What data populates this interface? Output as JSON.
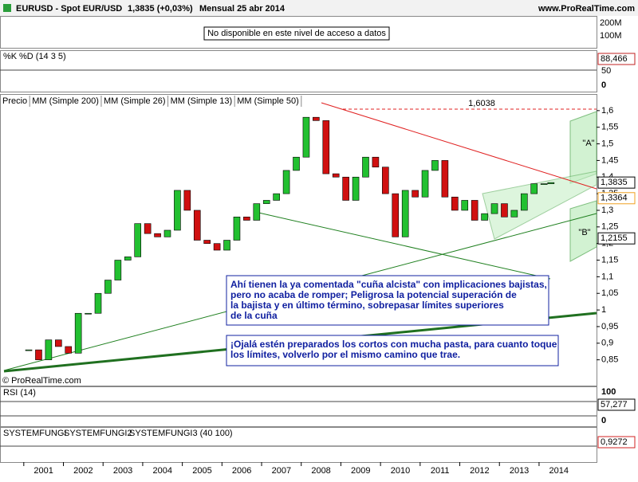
{
  "header": {
    "symbol": "EURUSD - Spot EUR/USD",
    "quote": "1,3835 (+0,03%)",
    "period": "Mensual  25 abr 2014",
    "site": "www.ProRealTime.com"
  },
  "volume_panel": {
    "message": "No disponible en este nivel de acceso a datos",
    "ticks": [
      "200M",
      "100M"
    ]
  },
  "stoch_panel": {
    "legend": [
      "%K",
      "%D (14 3 5)"
    ],
    "last": "88,466",
    "ticks": [
      "50",
      "0"
    ]
  },
  "rsi_panel": {
    "legend": "RSI (14)",
    "last": "57,277",
    "ticks": [
      "100",
      "0"
    ]
  },
  "fungi_panel": {
    "legend": [
      "SYSTEMFUNGI",
      "SYSTEMFUNGI2",
      "SYSTEMFUNGI3 (40 100)"
    ],
    "colors": [
      "#000000",
      "#d02020",
      "#2030b0"
    ],
    "last": "0,9272"
  },
  "chart_data": {
    "type": "candlestick",
    "legend": [
      {
        "name": "Precio",
        "color": "#000000"
      },
      {
        "name": "MM (Simple 200)",
        "color": "#000000"
      },
      {
        "name": "MM (Simple 26)",
        "color": "#c02020"
      },
      {
        "name": "MM (Simple 13)",
        "color": "#207040"
      },
      {
        "name": "MM (Simple 50)",
        "color": "#f0a020"
      }
    ],
    "up_color": "#22c030",
    "down_color": "#d01010",
    "x": [
      2001.125,
      2001.375,
      2001.625,
      2001.875,
      2002.125,
      2002.375,
      2002.625,
      2002.875,
      2003.125,
      2003.375,
      2003.625,
      2003.875,
      2004.125,
      2004.375,
      2004.625,
      2004.875,
      2005.125,
      2005.375,
      2005.625,
      2005.875,
      2006.125,
      2006.375,
      2006.625,
      2006.875,
      2007.125,
      2007.375,
      2007.625,
      2007.875,
      2008.125,
      2008.375,
      2008.625,
      2008.875,
      2009.125,
      2009.375,
      2009.625,
      2009.875,
      2010.125,
      2010.375,
      2010.625,
      2010.875,
      2011.125,
      2011.375,
      2011.625,
      2011.875,
      2012.125,
      2012.375,
      2012.625,
      2012.875,
      2013.125,
      2013.375,
      2013.625,
      2013.875,
      2014.125,
      2014.3
    ],
    "close": [
      0.88,
      0.85,
      0.91,
      0.89,
      0.87,
      0.99,
      0.99,
      1.05,
      1.09,
      1.15,
      1.16,
      1.26,
      1.23,
      1.22,
      1.24,
      1.36,
      1.3,
      1.21,
      1.2,
      1.18,
      1.21,
      1.28,
      1.27,
      1.32,
      1.33,
      1.35,
      1.42,
      1.46,
      1.58,
      1.57,
      1.41,
      1.4,
      1.33,
      1.4,
      1.46,
      1.43,
      1.35,
      1.22,
      1.36,
      1.34,
      1.42,
      1.45,
      1.34,
      1.3,
      1.33,
      1.27,
      1.29,
      1.32,
      1.28,
      1.3,
      1.35,
      1.38,
      1.38,
      1.3835
    ],
    "xlim": [
      2000.4,
      2015.45
    ],
    "xticks": [
      2001,
      2002,
      2003,
      2004,
      2005,
      2006,
      2007,
      2008,
      2009,
      2010,
      2011,
      2012,
      2013,
      2014
    ],
    "ylim": [
      0.77,
      1.65
    ],
    "yticks": [
      {
        "value": 0.85,
        "label": "0,85"
      },
      {
        "value": 0.9,
        "label": "0,9"
      },
      {
        "value": 0.95,
        "label": "0,95"
      },
      1,
      {
        "value": 1.05,
        "label": "1,05"
      },
      {
        "value": 1.1,
        "label": "1,1"
      },
      {
        "value": 1.15,
        "label": "1,15"
      },
      {
        "value": 1.2,
        "label": "1,2"
      },
      {
        "value": 1.25,
        "label": "1,25"
      },
      {
        "value": 1.3,
        "label": "1,3"
      },
      {
        "value": 1.35,
        "label": "1,35"
      },
      {
        "value": 1.4,
        "label": "1,4"
      },
      {
        "value": 1.45,
        "label": "1,45"
      },
      {
        "value": 1.5,
        "label": "1,5"
      },
      {
        "value": 1.55,
        "label": "1,55"
      },
      {
        "value": 1.6,
        "label": "1,6"
      }
    ],
    "price_labels": [
      {
        "value": 1.3835,
        "label": "1,3835",
        "color": "#000000"
      },
      {
        "value": 1.3364,
        "label": "1,3364",
        "color": "#f0a020"
      },
      {
        "value": 1.2155,
        "label": "1,2155",
        "color": "#000000"
      }
    ],
    "max_label": {
      "value": 1.6038,
      "label": "1,6038"
    },
    "zone_labels": [
      "\"A\"",
      "\"B\""
    ],
    "notes": [
      [
        "Ahí tienen la ya comentada \"cuña alcista\" con implicaciones bajistas,",
        "pero no acaba de romper; Peligrosa la potencial superación de",
        "la bajista y en último término, sobrepasar límites superiores",
        "de la cuña"
      ],
      [
        "¡Ojalá estén preparados los cortos con mucha pasta, para cuanto toque",
        "los límites, volverlo por el mismo camino que trae."
      ]
    ],
    "copyright": "© ProRealTime.com"
  }
}
